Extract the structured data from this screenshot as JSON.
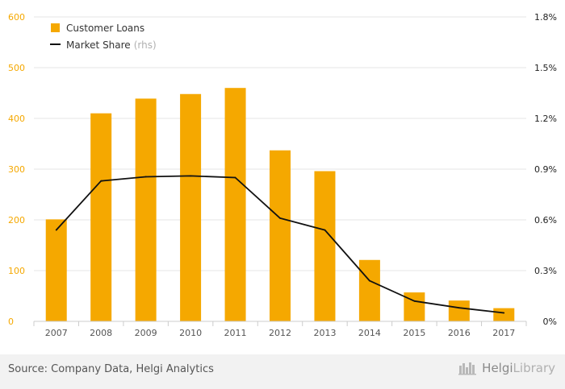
{
  "chart_data": {
    "type": "bar",
    "categories": [
      "2007",
      "2008",
      "2009",
      "2010",
      "2011",
      "2012",
      "2013",
      "2014",
      "2015",
      "2016",
      "2017"
    ],
    "series": [
      {
        "name": "Customer Loans",
        "type": "bar",
        "axis": "left",
        "values": [
          201,
          410,
          439,
          448,
          460,
          337,
          296,
          121,
          57,
          41,
          26
        ]
      },
      {
        "name": "Market Share",
        "name_suffix": "(rhs)",
        "type": "line",
        "axis": "right",
        "values": [
          0.54,
          0.83,
          0.855,
          0.86,
          0.85,
          0.61,
          0.54,
          0.24,
          0.12,
          0.08,
          0.05
        ]
      }
    ],
    "ylim": [
      0,
      600
    ],
    "yticks": [
      "0",
      "100",
      "200",
      "300",
      "400",
      "500",
      "600"
    ],
    "y2lim": [
      0,
      1.8
    ],
    "y2ticks": [
      "0%",
      "0.3%",
      "0.6%",
      "0.9%",
      "1.2%",
      "1.5%",
      "1.8%"
    ],
    "grid": true,
    "legend_position": "top-left",
    "colors": {
      "bar": "#f5a800",
      "line": "#111111",
      "left_axis_text": "#f5a800",
      "right_axis_text": "#222222"
    }
  },
  "footer": {
    "source": "Source: Company Data, Helgi Analytics",
    "brand_helgi": "Helgi",
    "brand_library": "Library",
    "brand_icon": "helgi-library-logo-icon"
  }
}
